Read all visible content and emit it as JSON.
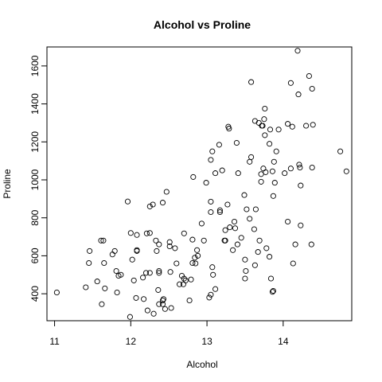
{
  "chart_data": {
    "type": "scatter",
    "title": "Alcohol vs Proline",
    "xlabel": "Alcohol",
    "ylabel": "Proline",
    "xlim": [
      10.9,
      14.9
    ],
    "ylim": [
      258,
      1700
    ],
    "xticks": [
      11,
      12,
      13,
      14
    ],
    "yticks": [
      400,
      600,
      800,
      1000,
      1200,
      1400,
      1600
    ],
    "grid": false,
    "legend": "none",
    "points": [
      [
        11.03,
        407
      ],
      [
        11.41,
        434
      ],
      [
        11.45,
        562
      ],
      [
        11.46,
        625
      ],
      [
        11.56,
        465
      ],
      [
        11.61,
        680
      ],
      [
        11.62,
        345
      ],
      [
        11.64,
        680
      ],
      [
        11.65,
        562
      ],
      [
        11.66,
        428
      ],
      [
        11.76,
        607
      ],
      [
        11.79,
        625
      ],
      [
        11.81,
        520
      ],
      [
        11.82,
        407
      ],
      [
        11.84,
        495
      ],
      [
        11.87,
        500
      ],
      [
        11.96,
        886
      ],
      [
        11.99,
        278
      ],
      [
        12.0,
        720
      ],
      [
        12.02,
        580
      ],
      [
        12.04,
        470
      ],
      [
        12.07,
        378
      ],
      [
        12.08,
        630
      ],
      [
        12.08,
        625
      ],
      [
        12.08,
        710
      ],
      [
        12.16,
        485
      ],
      [
        12.17,
        372
      ],
      [
        12.2,
        510
      ],
      [
        12.21,
        718
      ],
      [
        12.22,
        312
      ],
      [
        12.25,
        510
      ],
      [
        12.25,
        860
      ],
      [
        12.25,
        720
      ],
      [
        12.29,
        870
      ],
      [
        12.3,
        295
      ],
      [
        12.33,
        680
      ],
      [
        12.34,
        625
      ],
      [
        12.36,
        420
      ],
      [
        12.37,
        345
      ],
      [
        12.37,
        510
      ],
      [
        12.37,
        660
      ],
      [
        12.37,
        520
      ],
      [
        12.42,
        345
      ],
      [
        12.42,
        365
      ],
      [
        12.42,
        880
      ],
      [
        12.43,
        372
      ],
      [
        12.45,
        320
      ],
      [
        12.47,
        937
      ],
      [
        12.51,
        672
      ],
      [
        12.51,
        650
      ],
      [
        12.52,
        515
      ],
      [
        12.53,
        325
      ],
      [
        12.58,
        640
      ],
      [
        12.6,
        560
      ],
      [
        12.64,
        450
      ],
      [
        12.67,
        495
      ],
      [
        12.69,
        450
      ],
      [
        12.7,
        480
      ],
      [
        12.7,
        718
      ],
      [
        12.72,
        470
      ],
      [
        12.77,
        365
      ],
      [
        12.79,
        475
      ],
      [
        12.81,
        685
      ],
      [
        12.81,
        562
      ],
      [
        12.82,
        1015
      ],
      [
        12.84,
        590
      ],
      [
        12.85,
        560
      ],
      [
        12.87,
        630
      ],
      [
        12.88,
        600
      ],
      [
        12.93,
        770
      ],
      [
        12.96,
        680
      ],
      [
        12.99,
        985
      ],
      [
        13.03,
        380
      ],
      [
        13.05,
        885
      ],
      [
        13.05,
        395
      ],
      [
        13.05,
        1105
      ],
      [
        13.05,
        830
      ],
      [
        13.07,
        1150
      ],
      [
        13.07,
        540
      ],
      [
        13.08,
        500
      ],
      [
        13.11,
        1035
      ],
      [
        13.11,
        425
      ],
      [
        13.16,
        1185
      ],
      [
        13.17,
        830
      ],
      [
        13.17,
        840
      ],
      [
        13.2,
        1050
      ],
      [
        13.23,
        680
      ],
      [
        13.24,
        735
      ],
      [
        13.24,
        680
      ],
      [
        13.27,
        870
      ],
      [
        13.28,
        1280
      ],
      [
        13.29,
        1270
      ],
      [
        13.3,
        750
      ],
      [
        13.34,
        630
      ],
      [
        13.36,
        780
      ],
      [
        13.37,
        745
      ],
      [
        13.39,
        1195
      ],
      [
        13.4,
        660
      ],
      [
        13.41,
        1035
      ],
      [
        13.45,
        695
      ],
      [
        13.49,
        920
      ],
      [
        13.5,
        580
      ],
      [
        13.5,
        480
      ],
      [
        13.51,
        520
      ],
      [
        13.52,
        845
      ],
      [
        13.56,
        1095
      ],
      [
        13.56,
        795
      ],
      [
        13.58,
        1515
      ],
      [
        13.58,
        1120
      ],
      [
        13.62,
        740
      ],
      [
        13.63,
        1310
      ],
      [
        13.63,
        550
      ],
      [
        13.64,
        845
      ],
      [
        13.67,
        620
      ],
      [
        13.68,
        1300
      ],
      [
        13.69,
        680
      ],
      [
        13.71,
        1030
      ],
      [
        13.71,
        990
      ],
      [
        13.72,
        1285
      ],
      [
        13.73,
        1285
      ],
      [
        13.74,
        1060
      ],
      [
        13.75,
        1320
      ],
      [
        13.76,
        1235
      ],
      [
        13.76,
        1375
      ],
      [
        13.77,
        1040
      ],
      [
        13.78,
        640
      ],
      [
        13.82,
        595
      ],
      [
        13.82,
        1190
      ],
      [
        13.83,
        1265
      ],
      [
        13.84,
        480
      ],
      [
        13.86,
        410
      ],
      [
        13.86,
        1045
      ],
      [
        13.87,
        415
      ],
      [
        13.87,
        915
      ],
      [
        13.88,
        1095
      ],
      [
        13.89,
        985
      ],
      [
        13.91,
        1150
      ],
      [
        13.94,
        1265
      ],
      [
        14.02,
        1035
      ],
      [
        14.06,
        1295
      ],
      [
        14.06,
        780
      ],
      [
        14.1,
        1060
      ],
      [
        14.1,
        1510
      ],
      [
        14.12,
        1280
      ],
      [
        14.13,
        560
      ],
      [
        14.16,
        660
      ],
      [
        14.19,
        1680
      ],
      [
        14.2,
        1450
      ],
      [
        14.21,
        1080
      ],
      [
        14.22,
        1065
      ],
      [
        14.23,
        760
      ],
      [
        14.23,
        970
      ],
      [
        14.3,
        1285
      ],
      [
        14.34,
        1547
      ],
      [
        14.37,
        660
      ],
      [
        14.38,
        1480
      ],
      [
        14.38,
        1065
      ],
      [
        14.39,
        1290
      ],
      [
        14.75,
        1150
      ],
      [
        14.83,
        1045
      ]
    ]
  }
}
